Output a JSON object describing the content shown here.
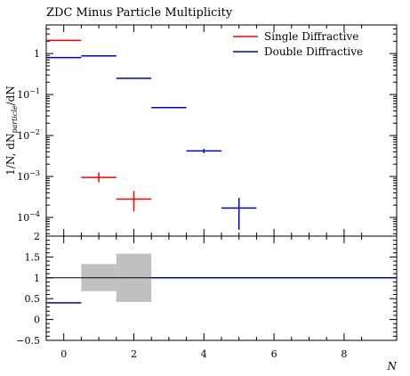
{
  "chart_data": [
    {
      "type": "scatter",
      "title": "ZDC Minus Particle Multiplicity",
      "ylabel_parts": [
        "1/N, dN",
        "particle",
        "/dN"
      ],
      "xlabel": "",
      "yscale": "log",
      "xlim": [
        -0.5,
        9.5
      ],
      "ylim": [
        3.5e-05,
        5
      ],
      "yticks": [
        {
          "v": 1,
          "label": "1"
        },
        {
          "v": 0.1,
          "base": "10",
          "exp": "−1"
        },
        {
          "v": 0.01,
          "base": "10",
          "exp": "−2"
        },
        {
          "v": 0.001,
          "base": "10",
          "exp": "−3"
        },
        {
          "v": 0.0001,
          "base": "10",
          "exp": "−4"
        }
      ],
      "legend_position": "top-right",
      "series": [
        {
          "name": "Single Diffractive",
          "color": "#ff0000",
          "points": [
            {
              "xlo": -0.5,
              "xhi": 0.5,
              "y": 2.1,
              "ylo": 2.1,
              "yhi": 2.1
            },
            {
              "xlo": 0.5,
              "xhi": 1.5,
              "y": 0.00095,
              "ylo": 0.00072,
              "yhi": 0.00125
            },
            {
              "xlo": 1.5,
              "xhi": 2.5,
              "y": 0.00028,
              "ylo": 0.00014,
              "yhi": 0.00044
            }
          ]
        },
        {
          "name": "Double Diffractive",
          "color": "#0000cc",
          "points": [
            {
              "xlo": -0.5,
              "xhi": 0.5,
              "y": 0.8,
              "ylo": 0.8,
              "yhi": 0.8
            },
            {
              "xlo": 0.5,
              "xhi": 1.5,
              "y": 0.88,
              "ylo": 0.88,
              "yhi": 0.88
            },
            {
              "xlo": 1.5,
              "xhi": 2.5,
              "y": 0.25,
              "ylo": 0.25,
              "yhi": 0.25
            },
            {
              "xlo": 2.5,
              "xhi": 3.5,
              "y": 0.048,
              "ylo": 0.047,
              "yhi": 0.049
            },
            {
              "xlo": 3.5,
              "xhi": 4.5,
              "y": 0.0042,
              "ylo": 0.0037,
              "yhi": 0.0047
            },
            {
              "xlo": 4.5,
              "xhi": 5.5,
              "y": 0.00017,
              "ylo": 5e-05,
              "yhi": 0.0003
            }
          ]
        }
      ]
    },
    {
      "type": "line",
      "xlabel": "N",
      "xlim": [
        -0.5,
        9.5
      ],
      "ylim": [
        -0.5,
        2
      ],
      "xticks": [
        0,
        2,
        4,
        6,
        8
      ],
      "yticks": [
        -0.5,
        0,
        0.5,
        1,
        1.5,
        2
      ],
      "yticklabels": [
        "−0.5",
        "0",
        "0.5",
        "1",
        "1.5",
        "2"
      ],
      "reference": 1,
      "bands": [
        {
          "xlo": 0.5,
          "xhi": 1.5,
          "ylo": 0.68,
          "yhi": 1.33
        },
        {
          "xlo": 1.5,
          "xhi": 2.5,
          "ylo": 0.42,
          "yhi": 1.58
        }
      ],
      "band_color": "#c0c0c0",
      "series": [
        {
          "color": "#0000cc",
          "points": [
            {
              "xlo": -0.5,
              "xhi": 0.5,
              "y": 0.4
            },
            {
              "xlo": 2.5,
              "xhi": 9.5,
              "y": 1
            }
          ]
        }
      ]
    }
  ]
}
